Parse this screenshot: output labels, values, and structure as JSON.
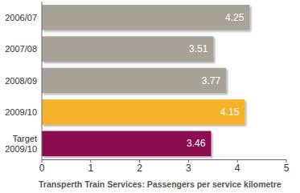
{
  "chart_data": {
    "type": "bar",
    "orientation": "horizontal",
    "title": "Transperth Train Services: Passengers per service kilometre",
    "categories": [
      "2006/07",
      "2007/08",
      "2008/09",
      "2009/10",
      "Target 2009/10"
    ],
    "values": [
      4.25,
      3.51,
      3.77,
      4.15,
      3.46
    ],
    "colors": [
      "#a8a198",
      "#a8a198",
      "#a8a198",
      "#f4b12a",
      "#8c1150"
    ],
    "ylim": [
      0,
      5
    ],
    "yticks": [
      0,
      1,
      2,
      3,
      4,
      5
    ],
    "data_labels": true,
    "grid": false
  }
}
